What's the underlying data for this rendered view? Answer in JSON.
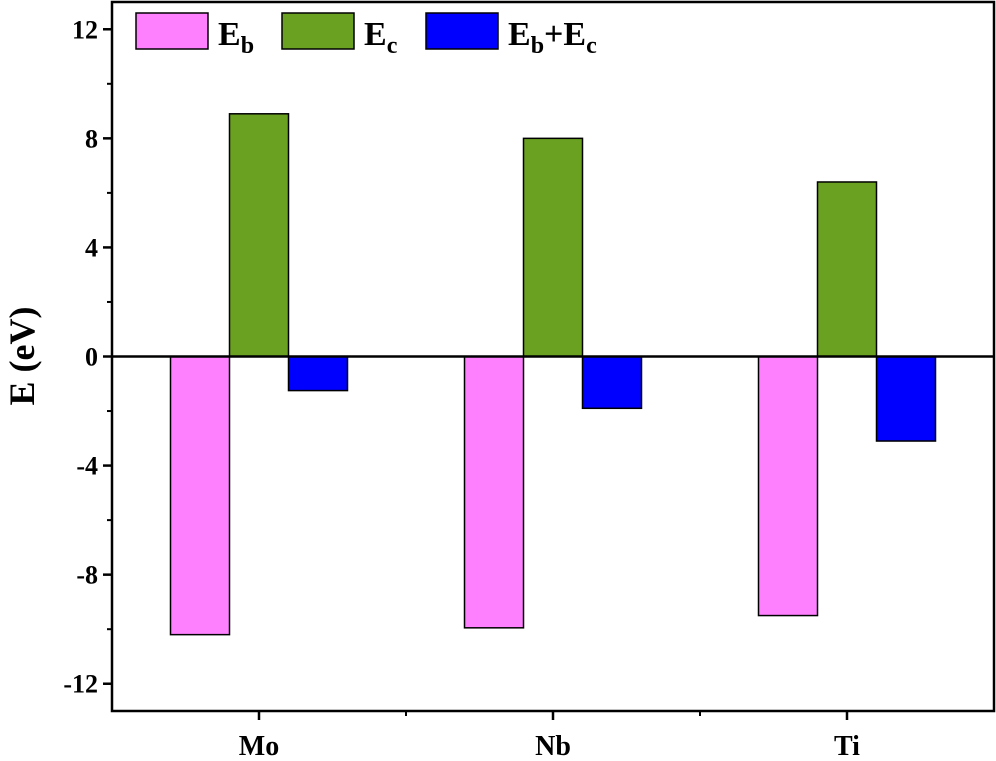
{
  "chart_data": {
    "type": "bar",
    "categories": [
      "Mo",
      "Nb",
      "Ti"
    ],
    "series": [
      {
        "name": "E_b",
        "label_main": "E",
        "label_sub": "b",
        "label_rest": "",
        "color": "#ff80ff",
        "values": [
          -10.2,
          -9.95,
          -9.5
        ]
      },
      {
        "name": "E_c",
        "label_main": "E",
        "label_sub": "c",
        "label_rest": "",
        "color": "#6aa121",
        "values": [
          8.9,
          8.0,
          6.4
        ]
      },
      {
        "name": "E_b+E_c",
        "label_main": "E",
        "label_sub": "b",
        "label_rest": "+E",
        "label_sub2": "c",
        "color": "#0000ff",
        "values": [
          -1.25,
          -1.9,
          -3.1
        ]
      }
    ],
    "ylabel": "E (eV)",
    "xlabel": "",
    "ylim": [
      -13,
      13
    ],
    "yticks": [
      "-12",
      "-8",
      "-4",
      "0",
      "4",
      "8",
      "12"
    ],
    "zero_line": true,
    "grid": false,
    "legend_position": "top-left"
  }
}
